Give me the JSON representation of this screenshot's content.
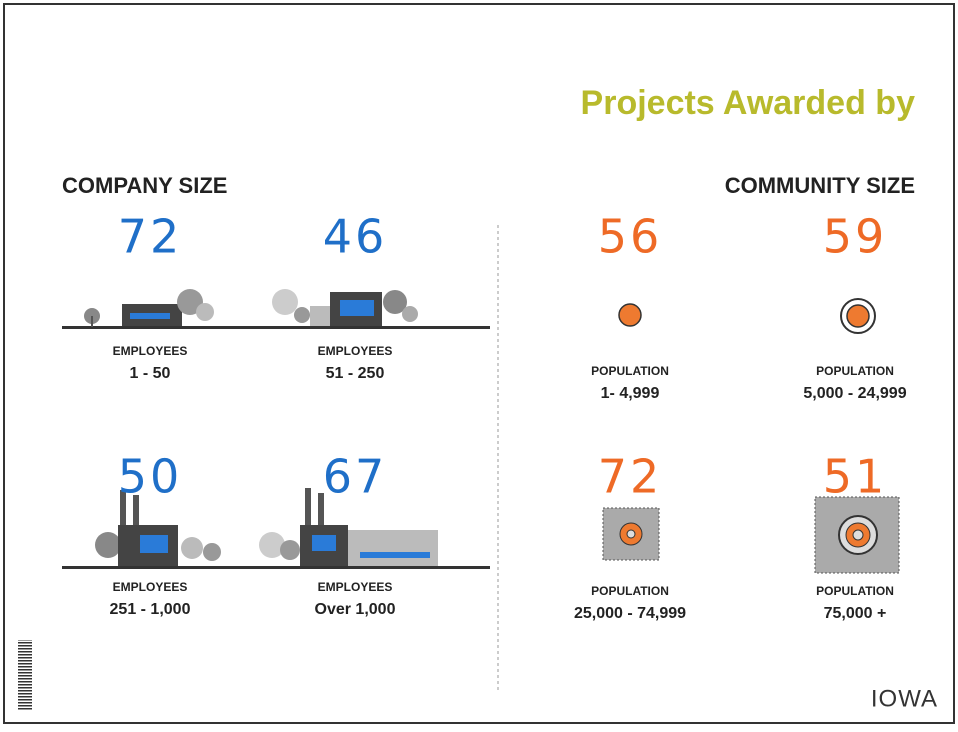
{
  "title": "Projects Awarded by",
  "company_size": {
    "heading": "COMPANY SIZE",
    "items": [
      {
        "count": 72,
        "label": "EMPLOYEES",
        "range": "1 - 50"
      },
      {
        "count": 46,
        "label": "EMPLOYEES",
        "range": "51 - 250"
      },
      {
        "count": 50,
        "label": "EMPLOYEES",
        "range": "251 - 1,000"
      },
      {
        "count": 67,
        "label": "EMPLOYEES",
        "range": "Over 1,000"
      }
    ]
  },
  "community_size": {
    "heading": "COMMUNITY SIZE",
    "items": [
      {
        "count": 56,
        "label": "POPULATION",
        "range": "1- 4,999"
      },
      {
        "count": 59,
        "label": "POPULATION",
        "range": "5,000 - 24,999"
      },
      {
        "count": 72,
        "label": "POPULATION",
        "range": "25,000 - 74,999"
      },
      {
        "count": 51,
        "label": "POPULATION",
        "range": "75,000 +"
      }
    ]
  },
  "logo": "IOWA"
}
